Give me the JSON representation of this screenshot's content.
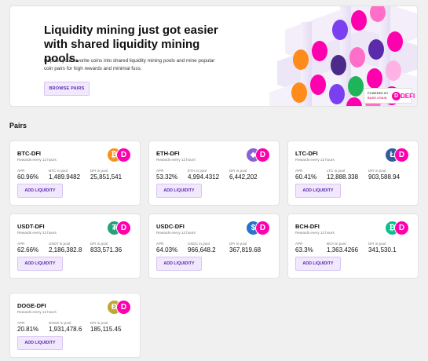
{
  "hero": {
    "title": "Liquidity mining just got easier with shared liquidity mining pools.",
    "description": "Deposit your favorite coins into shared liquidity mining pools and mine popular coin pairs for high rewards and minimal fuss.",
    "button_label": "BROWSE PAIRS",
    "powered_line1": "POWERED BY",
    "powered_line2": "BAKE.CHAIN",
    "powered_logo": "DEFI",
    "powered_logo_glyph": "D"
  },
  "section_title": "Pairs",
  "labels": {
    "rewards": "Rewards every 12 hours",
    "apr": "APR",
    "dfi_in_pool": "DFI in pool",
    "add_liquidity": "ADD LIQUIDITY",
    "dfi_glyph": "D"
  },
  "pairs": [
    {
      "name": "BTC-DFI",
      "apr": "60.96%",
      "coin_label": "BTC in pool",
      "coin_in_pool": "1,489.9482",
      "dfi_in_pool": "25,851,541",
      "coin_color": "#f7931a",
      "coin_glyph": "₿",
      "coin_icon": "bitcoin-icon"
    },
    {
      "name": "ETH-DFI",
      "apr": "53.32%",
      "coin_label": "ETH in pool",
      "coin_in_pool": "4,994.4312",
      "dfi_in_pool": "6,442,202",
      "coin_color": "#8a63d2",
      "coin_glyph": "◆",
      "coin_icon": "ethereum-icon"
    },
    {
      "name": "LTC-DFI",
      "apr": "60.41%",
      "coin_label": "LTC in pool",
      "coin_in_pool": "12,888.338",
      "dfi_in_pool": "903,588.94",
      "coin_color": "#345d9d",
      "coin_glyph": "Ł",
      "coin_icon": "litecoin-icon"
    },
    {
      "name": "USDT-DFI",
      "apr": "62.66%",
      "coin_label": "USDT in pool",
      "coin_in_pool": "2,186,382.8",
      "dfi_in_pool": "833,571.36",
      "coin_color": "#26a17b",
      "coin_glyph": "₮",
      "coin_icon": "tether-icon"
    },
    {
      "name": "USDC-DFI",
      "apr": "64.03%",
      "coin_label": "USDC in pool",
      "coin_in_pool": "966,648.2",
      "dfi_in_pool": "367,819.68",
      "coin_color": "#2775ca",
      "coin_glyph": "$",
      "coin_icon": "usdc-icon"
    },
    {
      "name": "BCH-DFI",
      "apr": "63.3%",
      "coin_label": "BCH in pool",
      "coin_in_pool": "1,363.4266",
      "dfi_in_pool": "341,530.1",
      "coin_color": "#0ac18e",
      "coin_glyph": "₿",
      "coin_icon": "bitcoin-cash-icon"
    },
    {
      "name": "DOGE-DFI",
      "apr": "20.81%",
      "coin_label": "DOGE in pool",
      "coin_in_pool": "1,931,478.6",
      "dfi_in_pool": "185,115.45",
      "coin_color": "#c2a633",
      "coin_glyph": "Ð",
      "coin_icon": "dogecoin-icon"
    }
  ]
}
